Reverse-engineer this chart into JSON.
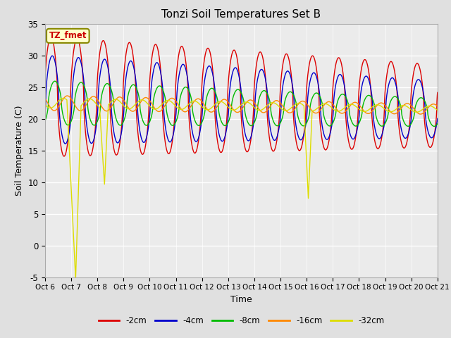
{
  "title": "Tonzi Soil Temperatures Set B",
  "xlabel": "Time",
  "ylabel": "Soil Temperature (C)",
  "ylim": [
    -5,
    35
  ],
  "xlim": [
    0,
    360
  ],
  "fig_bg": "#e0e0e0",
  "plot_bg": "#ebebeb",
  "series": [
    {
      "label": "-2cm",
      "color": "#dd0000"
    },
    {
      "label": "-4cm",
      "color": "#0000cc"
    },
    {
      "label": "-8cm",
      "color": "#00bb00"
    },
    {
      "label": "-16cm",
      "color": "#ff8800"
    },
    {
      "label": "-32cm",
      "color": "#dddd00"
    }
  ],
  "xtick_labels": [
    "Oct 6",
    "Oct 7",
    "Oct 8",
    "Oct 9",
    "Oct 10",
    "Oct 11",
    "Oct 12",
    "Oct 13",
    "Oct 14",
    "Oct 15",
    "Oct 16",
    "Oct 17",
    "Oct 18",
    "Oct 19",
    "Oct 20",
    "Oct 21"
  ],
  "xtick_positions": [
    0,
    24,
    48,
    72,
    96,
    120,
    144,
    168,
    192,
    216,
    240,
    264,
    288,
    312,
    336,
    360
  ],
  "ytick_positions": [
    -5,
    0,
    5,
    10,
    15,
    20,
    25,
    30,
    35
  ],
  "annotation_text": "TZ_fmet",
  "annotation_color": "#cc0000",
  "annotation_bg": "#ffffcc",
  "n_points": 2161,
  "period": 24.0
}
